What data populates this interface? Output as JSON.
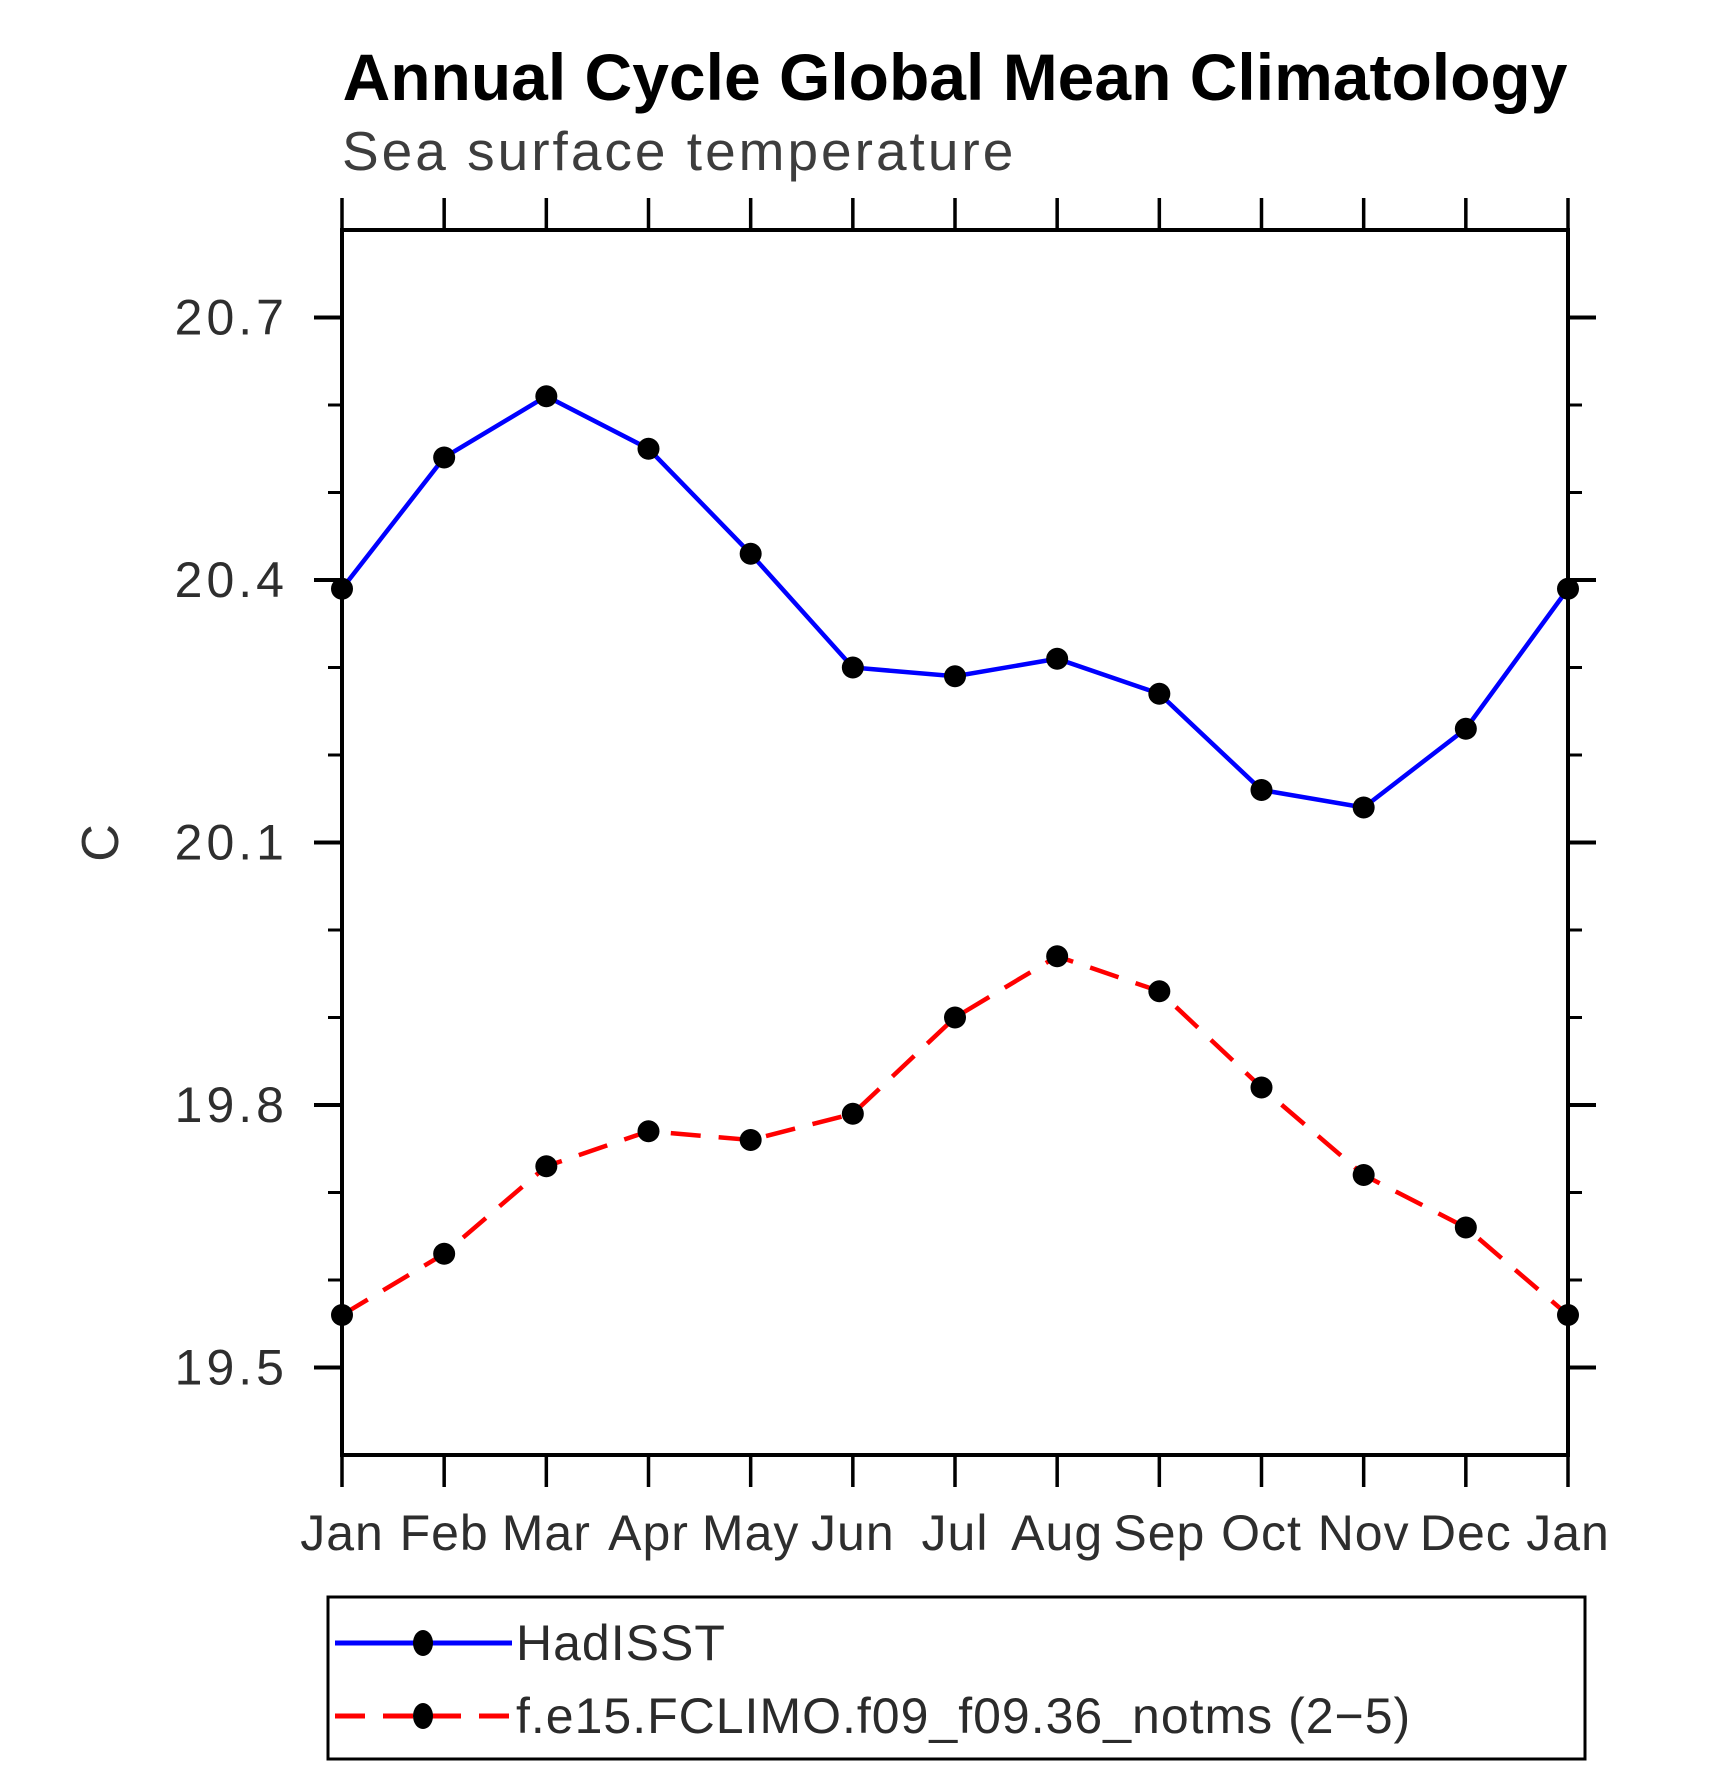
{
  "chart_data": {
    "type": "line",
    "title": "Annual Cycle Global Mean Climatology",
    "subtitle": "Sea surface temperature",
    "ylabel": "C",
    "xlabel": "",
    "categories": [
      "Jan",
      "Feb",
      "Mar",
      "Apr",
      "May",
      "Jun",
      "Jul",
      "Aug",
      "Sep",
      "Oct",
      "Nov",
      "Dec",
      "Jan"
    ],
    "ylim": [
      19.4,
      20.8
    ],
    "y_major_ticks": [
      20.7,
      20.4,
      20.1,
      19.8,
      19.5
    ],
    "y_minor_tick_step": 0.1,
    "grid": false,
    "legend_position": "bottom-left-box",
    "series": [
      {
        "name": "HadISST",
        "line_color": "#0000ff",
        "line_style": "solid",
        "marker": "filled-circle",
        "marker_color": "#000000",
        "values": [
          20.39,
          20.54,
          20.61,
          20.55,
          20.43,
          20.3,
          20.29,
          20.31,
          20.27,
          20.16,
          20.14,
          20.23,
          20.39
        ]
      },
      {
        "name": "f.e15.FCLIMO.f09_f09.36_notms (2−5)",
        "line_color": "#ff0000",
        "line_style": "dashed",
        "marker": "filled-circle",
        "marker_color": "#000000",
        "values": [
          19.56,
          19.63,
          19.73,
          19.77,
          19.76,
          19.79,
          19.9,
          19.97,
          19.93,
          19.82,
          19.72,
          19.66,
          19.56
        ]
      }
    ]
  }
}
